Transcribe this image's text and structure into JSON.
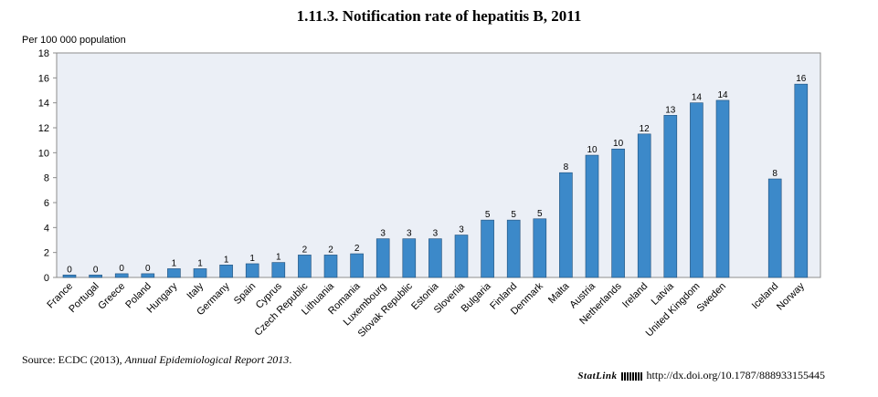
{
  "title": "1.11.3.  Notification rate of hepatitis B, 2011",
  "source": {
    "label": "Source:",
    "text": " ECDC (2013), ",
    "italic": "Annual Epidemiological Report 2013",
    "end": "."
  },
  "statlink": {
    "label": "StatLink",
    "url": "http://dx.doi.org/10.1787/888933155445"
  },
  "chart_data": {
    "type": "bar",
    "title": "1.11.3.  Notification rate of hepatitis B, 2011",
    "ylabel": "Per 100 000 population",
    "xlabel": "",
    "ylim": [
      0,
      18
    ],
    "yticks": [
      0,
      2,
      4,
      6,
      8,
      10,
      12,
      14,
      16,
      18
    ],
    "grid": false,
    "bar_color": "#3c89c9",
    "categories": [
      "France",
      "Portugal",
      "Greece",
      "Poland",
      "Hungary",
      "Italy",
      "Germany",
      "Spain",
      "Cyprus",
      "Czech Republic",
      "Lithuania",
      "Romania",
      "Luxembourg",
      "Slovak Republic",
      "Estonia",
      "Slovenia",
      "Bulgaria",
      "Finland",
      "Denmark",
      "Malta",
      "Austria",
      "Netherlands",
      "Ireland",
      "Latvia",
      "United Kingdom",
      "Sweden",
      "Iceland",
      "Norway"
    ],
    "values": [
      0.2,
      0.2,
      0.3,
      0.3,
      0.7,
      0.7,
      1.0,
      1.1,
      1.2,
      1.8,
      1.8,
      1.9,
      3.1,
      3.1,
      3.1,
      3.4,
      4.6,
      4.6,
      4.7,
      8.4,
      9.8,
      10.3,
      11.5,
      13.0,
      14.0,
      14.2,
      7.9,
      15.5
    ],
    "labels": [
      "0",
      "0",
      "0",
      "0",
      "1",
      "1",
      "1",
      "1",
      "1",
      "2",
      "2",
      "2",
      "3",
      "3",
      "3",
      "3",
      "5",
      "5",
      "5",
      "8",
      "10",
      "10",
      "12",
      "13",
      "14",
      "14",
      "8",
      "16"
    ]
  }
}
